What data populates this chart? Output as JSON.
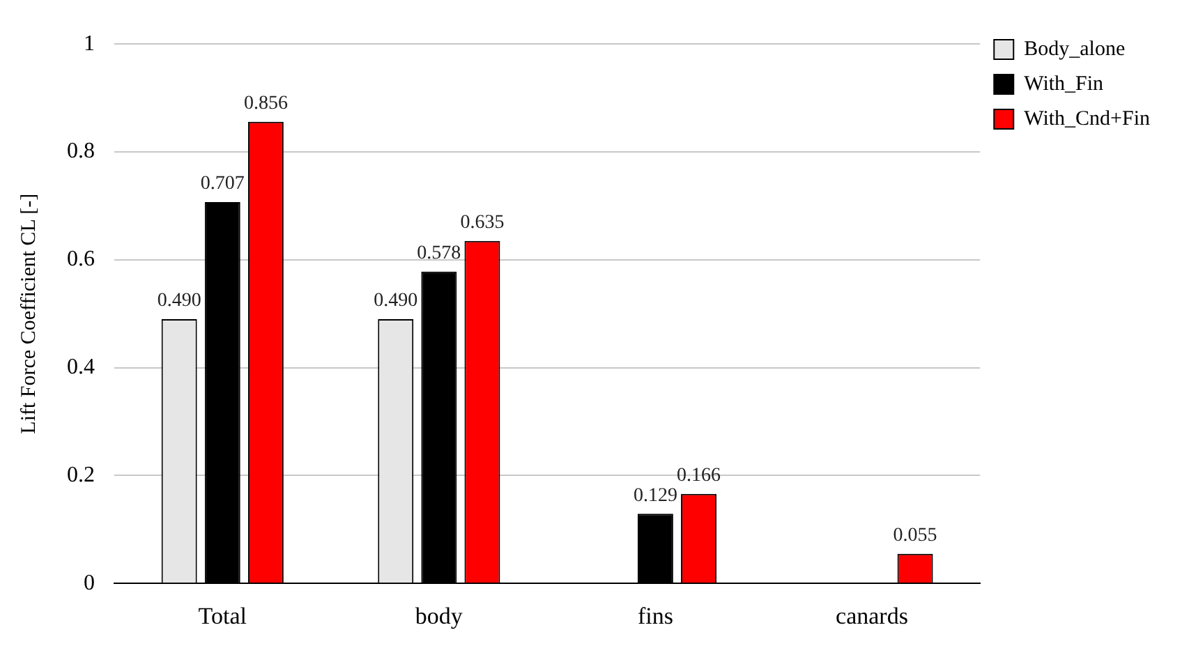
{
  "chart_data": {
    "type": "bar",
    "ylabel": "Lift Force Coefficient CL [-]",
    "categories": [
      "Total",
      "body",
      "fins",
      "canards"
    ],
    "series": [
      {
        "name": "Body_alone",
        "color": "#e6e6e6",
        "values": [
          0.49,
          0.49,
          null,
          null
        ],
        "value_labels": [
          "0.490",
          "0.490",
          null,
          null
        ]
      },
      {
        "name": "With_Fin",
        "color": "#000000",
        "values": [
          0.707,
          0.578,
          0.129,
          null
        ],
        "value_labels": [
          "0.707",
          "0.578",
          "0.129",
          null
        ]
      },
      {
        "name": "With_Cnd+Fin",
        "color": "#ff0000",
        "values": [
          0.856,
          0.635,
          0.166,
          0.055
        ],
        "value_labels": [
          "0.856",
          "0.635",
          "0.166",
          "0.055"
        ]
      }
    ],
    "ylim": [
      0,
      1
    ],
    "yticks": [
      0,
      0.2,
      0.4,
      0.6,
      0.8,
      1
    ],
    "grid": "y",
    "legend": "top right"
  }
}
